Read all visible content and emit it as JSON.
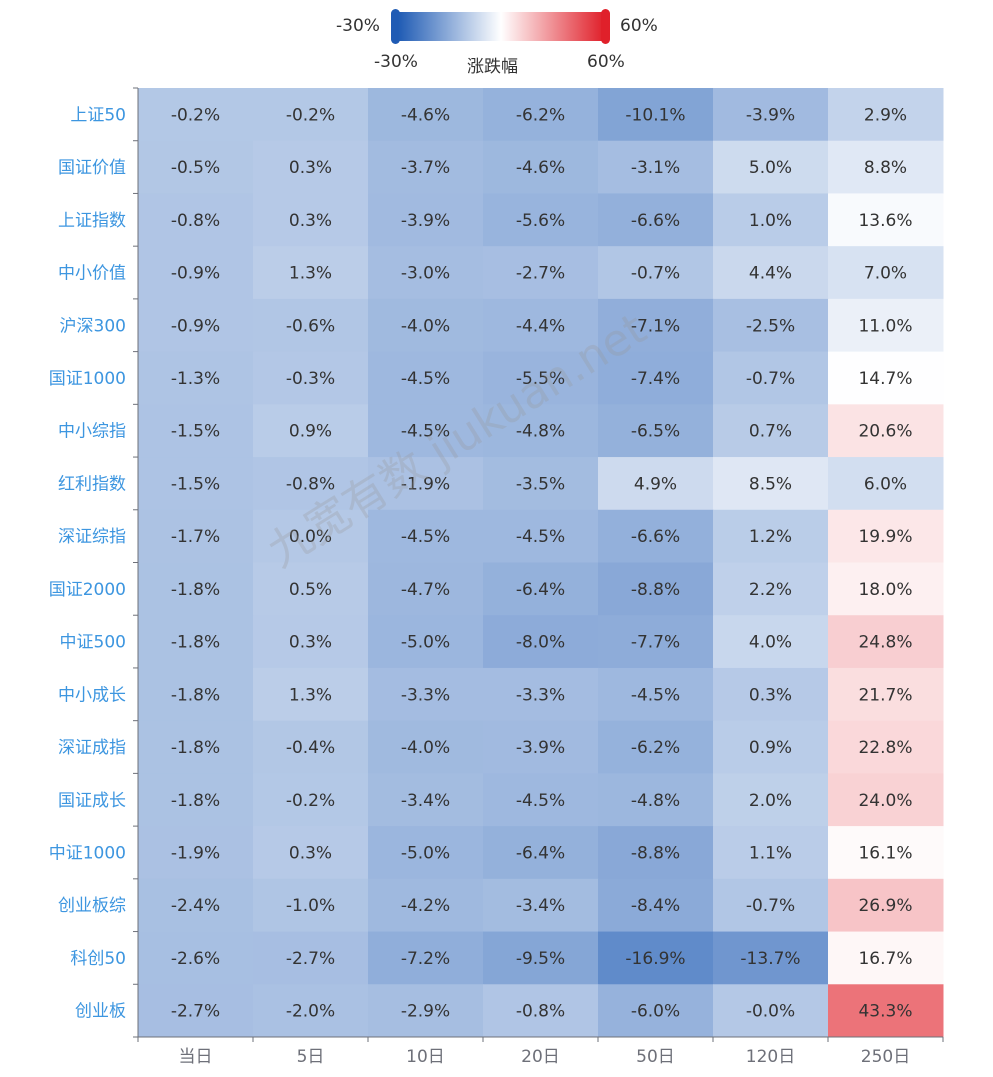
{
  "chart_data": {
    "type": "heatmap",
    "title": "",
    "xlabel": "",
    "ylabel": "",
    "categories_x": [
      "当日",
      "5日",
      "10日",
      "20日",
      "50日",
      "120日",
      "250日"
    ],
    "categories_y": [
      "上证50",
      "国证价值",
      "上证指数",
      "中小价值",
      "沪深300",
      "国证1000",
      "中小综指",
      "红利指数",
      "深证综指",
      "国证2000",
      "中证500",
      "中小成长",
      "深证成指",
      "国证成长",
      "中证1000",
      "创业板综",
      "科创50",
      "创业板"
    ],
    "values": [
      [
        -0.2,
        -0.2,
        -4.6,
        -6.2,
        -10.1,
        -3.9,
        2.9
      ],
      [
        -0.5,
        0.3,
        -3.7,
        -4.6,
        -3.1,
        5.0,
        8.8
      ],
      [
        -0.8,
        0.3,
        -3.9,
        -5.6,
        -6.6,
        1.0,
        13.6
      ],
      [
        -0.9,
        1.3,
        -3.0,
        -2.7,
        -0.7,
        4.4,
        7.0
      ],
      [
        -0.9,
        -0.6,
        -4.0,
        -4.4,
        -7.1,
        -2.5,
        11.0
      ],
      [
        -1.3,
        -0.3,
        -4.5,
        -5.5,
        -7.4,
        -0.7,
        14.7
      ],
      [
        -1.5,
        0.9,
        -4.5,
        -4.8,
        -6.5,
        0.7,
        20.6
      ],
      [
        -1.5,
        -0.8,
        -1.9,
        -3.5,
        4.9,
        8.5,
        6.0
      ],
      [
        -1.7,
        0.0,
        -4.5,
        -4.5,
        -6.6,
        1.2,
        19.9
      ],
      [
        -1.8,
        0.5,
        -4.7,
        -6.4,
        -8.8,
        2.2,
        18.0
      ],
      [
        -1.8,
        0.3,
        -5.0,
        -8.0,
        -7.7,
        4.0,
        24.8
      ],
      [
        -1.8,
        1.3,
        -3.3,
        -3.3,
        -4.5,
        0.3,
        21.7
      ],
      [
        -1.8,
        -0.4,
        -4.0,
        -3.9,
        -6.2,
        0.9,
        22.8
      ],
      [
        -1.8,
        -0.2,
        -3.4,
        -4.5,
        -4.8,
        2.0,
        24.0
      ],
      [
        -1.9,
        0.3,
        -5.0,
        -6.4,
        -8.8,
        1.1,
        16.1
      ],
      [
        -2.4,
        -1.0,
        -4.2,
        -3.4,
        -8.4,
        -0.7,
        26.9
      ],
      [
        -2.6,
        -2.7,
        -7.2,
        -9.5,
        -16.9,
        -13.7,
        16.7
      ],
      [
        -2.7,
        -2.0,
        -2.9,
        -0.8,
        -6.0,
        -0.0,
        43.3
      ]
    ],
    "unit": "%",
    "visual_map": {
      "name": "涨跌幅",
      "min": -30,
      "max": 60,
      "min_label": "-30%",
      "max_label": "60%",
      "colors": [
        "#1f5bb4",
        "#ffffff",
        "#e0202a"
      ]
    },
    "watermark": "九宽有数 jiukuan.net"
  }
}
